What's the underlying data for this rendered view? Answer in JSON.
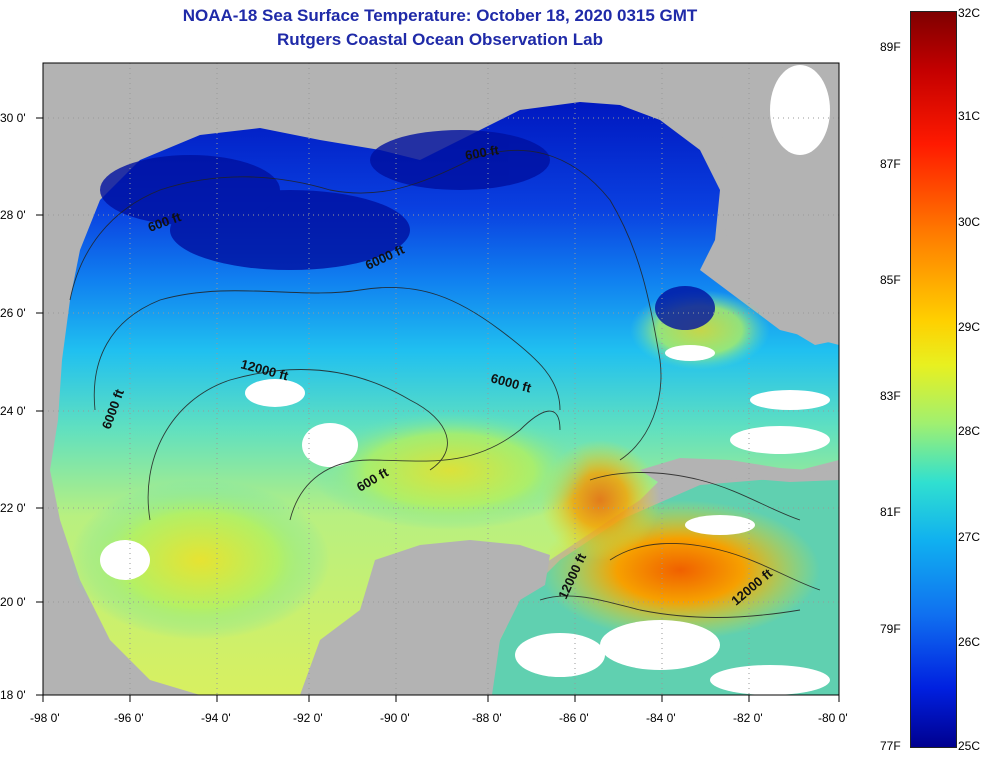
{
  "title": {
    "line1": "NOAA-18 Sea Surface Temperature:  October 18, 2020 0315 GMT",
    "line2": "Rutgers Coastal Ocean Observation Lab"
  },
  "map": {
    "x_ticks": [
      "-98 0'",
      "-96 0'",
      "-94 0'",
      "-92 0'",
      "-90 0'",
      "-88 0'",
      "-86 0'",
      "-84 0'",
      "-82 0'",
      "-80 0'"
    ],
    "y_ticks": [
      "30 0'",
      "28 0'",
      "26 0'",
      "24 0'",
      "22 0'",
      "20 0'",
      "18 0'"
    ],
    "lon_range": [
      -98,
      -80
    ],
    "lat_range": [
      18,
      31
    ],
    "contour_labels": {
      "c1": "600 ft",
      "c2": "600 ft",
      "c3": "6000 ft",
      "c4": "12000 ft",
      "c5": "6000 ft",
      "c6": "6000 ft",
      "c7": "600 ft",
      "c8": "12000 ft",
      "c9": "12000 ft"
    }
  },
  "colorbar": {
    "celsius": [
      "32C",
      "31C",
      "30C",
      "29C",
      "28C",
      "27C",
      "26C",
      "25C"
    ],
    "fahrenheit": [
      "89F",
      "87F",
      "85F",
      "83F",
      "81F",
      "79F",
      "77F"
    ]
  },
  "colors": {
    "land": "#b3b3b3",
    "title": "#1f2aa8",
    "cold": "#0020c0",
    "warm": "#f07a00"
  }
}
